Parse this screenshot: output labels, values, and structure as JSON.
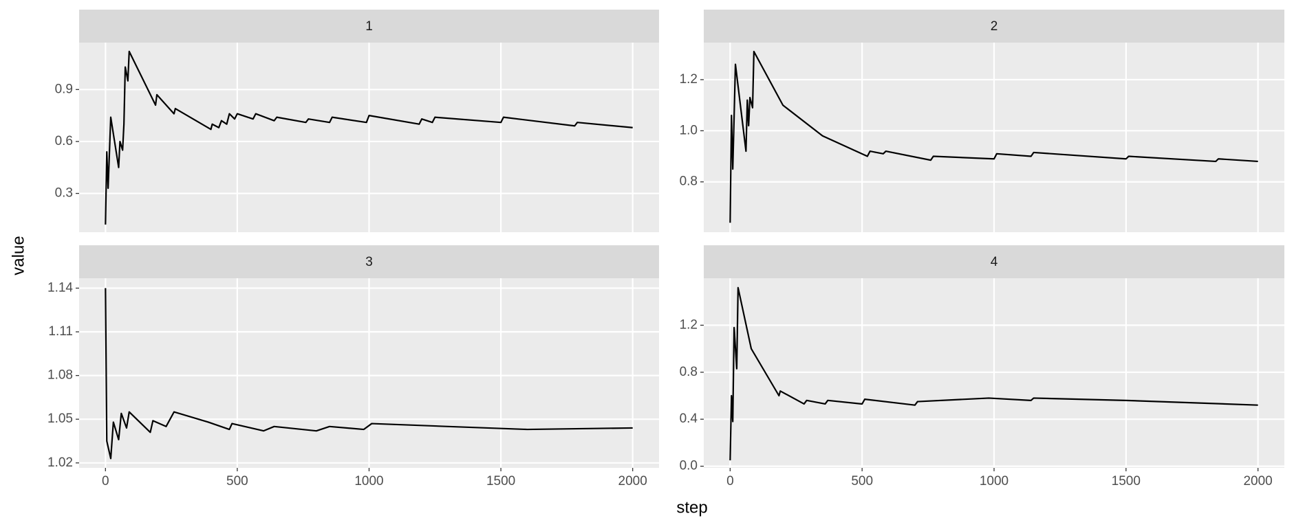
{
  "axis_labels": {
    "x": "step",
    "y": "value"
  },
  "chart_data": [
    {
      "type": "line",
      "title": "1",
      "color": "#000000",
      "grid": true,
      "xlim": [
        -100,
        2100
      ],
      "xticks": [
        0,
        500,
        1000,
        1500,
        2000
      ],
      "ylim": [
        0.076,
        1.171
      ],
      "yticks": [
        0.3,
        0.6,
        0.9
      ],
      "x": [
        0,
        5,
        10,
        20,
        50,
        55,
        65,
        70,
        75,
        85,
        90,
        190,
        195,
        260,
        265,
        400,
        405,
        430,
        440,
        460,
        470,
        490,
        500,
        560,
        570,
        640,
        650,
        760,
        770,
        850,
        860,
        990,
        1000,
        1190,
        1200,
        1240,
        1250,
        1500,
        1510,
        1780,
        1790,
        2000
      ],
      "values": [
        0.12,
        0.54,
        0.33,
        0.74,
        0.45,
        0.6,
        0.55,
        0.7,
        1.03,
        0.95,
        1.12,
        0.81,
        0.87,
        0.76,
        0.79,
        0.67,
        0.7,
        0.68,
        0.72,
        0.7,
        0.76,
        0.73,
        0.76,
        0.73,
        0.76,
        0.72,
        0.74,
        0.71,
        0.73,
        0.71,
        0.74,
        0.71,
        0.75,
        0.7,
        0.73,
        0.71,
        0.74,
        0.71,
        0.74,
        0.69,
        0.71,
        0.68
      ]
    },
    {
      "type": "line",
      "title": "2",
      "color": "#000000",
      "grid": true,
      "xlim": [
        -100,
        2100
      ],
      "xticks": [
        0,
        500,
        1000,
        1500,
        2000
      ],
      "ylim": [
        0.603,
        1.345
      ],
      "yticks": [
        0.8,
        {
          "value": 1.0,
          "label": "1.0"
        },
        1.2
      ],
      "x": [
        0,
        5,
        10,
        20,
        60,
        65,
        70,
        75,
        85,
        90,
        200,
        350,
        520,
        530,
        580,
        590,
        760,
        770,
        1000,
        1010,
        1140,
        1150,
        1500,
        1510,
        1840,
        1850,
        2000
      ],
      "values": [
        0.64,
        1.06,
        0.85,
        1.26,
        0.92,
        1.12,
        1.02,
        1.13,
        1.09,
        1.31,
        1.1,
        0.98,
        0.9,
        0.92,
        0.91,
        0.92,
        0.885,
        0.9,
        0.89,
        0.91,
        0.9,
        0.915,
        0.89,
        0.9,
        0.88,
        0.89,
        0.88
      ]
    },
    {
      "type": "line",
      "title": "3",
      "color": "#000000",
      "grid": true,
      "xlim": [
        -100,
        2100
      ],
      "xticks": [
        0,
        500,
        1000,
        1500,
        2000
      ],
      "ylim": [
        1.0166,
        1.1468
      ],
      "yticks": [
        1.02,
        1.05,
        1.08,
        1.11,
        1.14
      ],
      "x": [
        0,
        5,
        20,
        30,
        50,
        60,
        80,
        90,
        170,
        180,
        230,
        260,
        390,
        470,
        480,
        600,
        640,
        800,
        850,
        980,
        1010,
        1300,
        1600,
        2000
      ],
      "values": [
        1.14,
        1.035,
        1.023,
        1.048,
        1.036,
        1.054,
        1.044,
        1.055,
        1.041,
        1.049,
        1.045,
        1.055,
        1.048,
        1.043,
        1.047,
        1.042,
        1.045,
        1.042,
        1.045,
        1.043,
        1.047,
        1.045,
        1.043,
        1.044
      ]
    },
    {
      "type": "line",
      "title": "4",
      "color": "#000000",
      "grid": true,
      "xlim": [
        -100,
        2100
      ],
      "xticks": [
        0,
        500,
        1000,
        1500,
        2000
      ],
      "ylim": [
        -0.014,
        1.6
      ],
      "yticks": [
        {
          "value": 0.0,
          "label": "0.0"
        },
        0.4,
        0.8,
        1.2
      ],
      "x": [
        0,
        5,
        10,
        15,
        25,
        30,
        80,
        185,
        190,
        280,
        290,
        360,
        370,
        500,
        510,
        700,
        710,
        980,
        1140,
        1150,
        1500,
        2000
      ],
      "values": [
        0.05,
        0.6,
        0.38,
        1.18,
        0.83,
        1.52,
        1.0,
        0.6,
        0.64,
        0.53,
        0.56,
        0.53,
        0.56,
        0.53,
        0.57,
        0.52,
        0.55,
        0.58,
        0.56,
        0.58,
        0.56,
        0.52
      ]
    }
  ]
}
